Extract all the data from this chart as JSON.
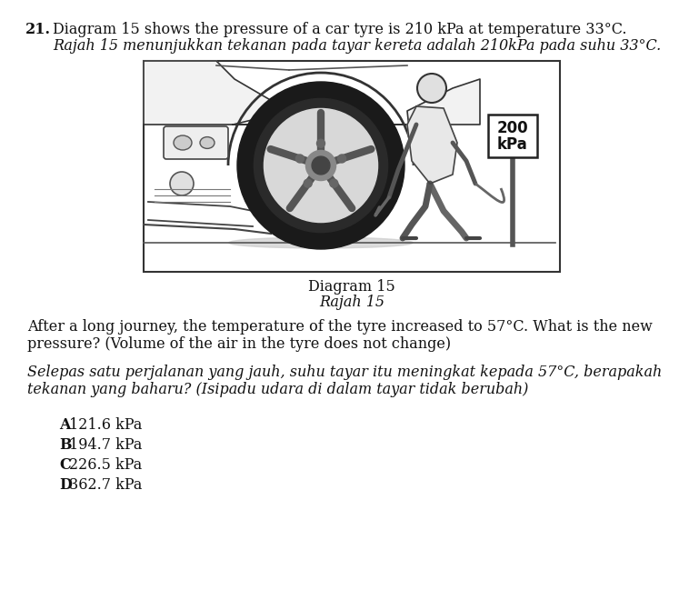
{
  "question_number": "21.",
  "line1": "Diagram 15 shows the pressure of a car tyre is 210 kPa at temperature 33°C.",
  "line2": "Rajah 15 menunjukkan tekanan pada tayar kereta adalah 210kPa pada suhu 33°C.",
  "diagram_label1": "Diagram 15",
  "diagram_label2": "Rajah 15",
  "gauge_text1": "200",
  "gauge_text2": "kPa",
  "para1_line1": "After a long journey, the temperature of the tyre increased to 57°C. What is the new",
  "para1_line2": "pressure? (Volume of the air in the tyre does not change)",
  "para2_line1": "Selepas satu perjalanan yang jauh, suhu tayar itu meningkat kepada 57°C, berapakah",
  "para2_line2": "tekanan yang baharu? (Isipadu udara di dalam tayar tidak berubah)",
  "options": [
    {
      "letter": "A",
      "text": "121.6 kPa"
    },
    {
      "letter": "B",
      "text": "194.7 kPa"
    },
    {
      "letter": "C",
      "text": "226.5 kPa"
    },
    {
      "letter": "D",
      "text": "362.7 kPa"
    }
  ],
  "bg_color": "#ffffff",
  "text_color": "#111111",
  "box_color": "#333333"
}
